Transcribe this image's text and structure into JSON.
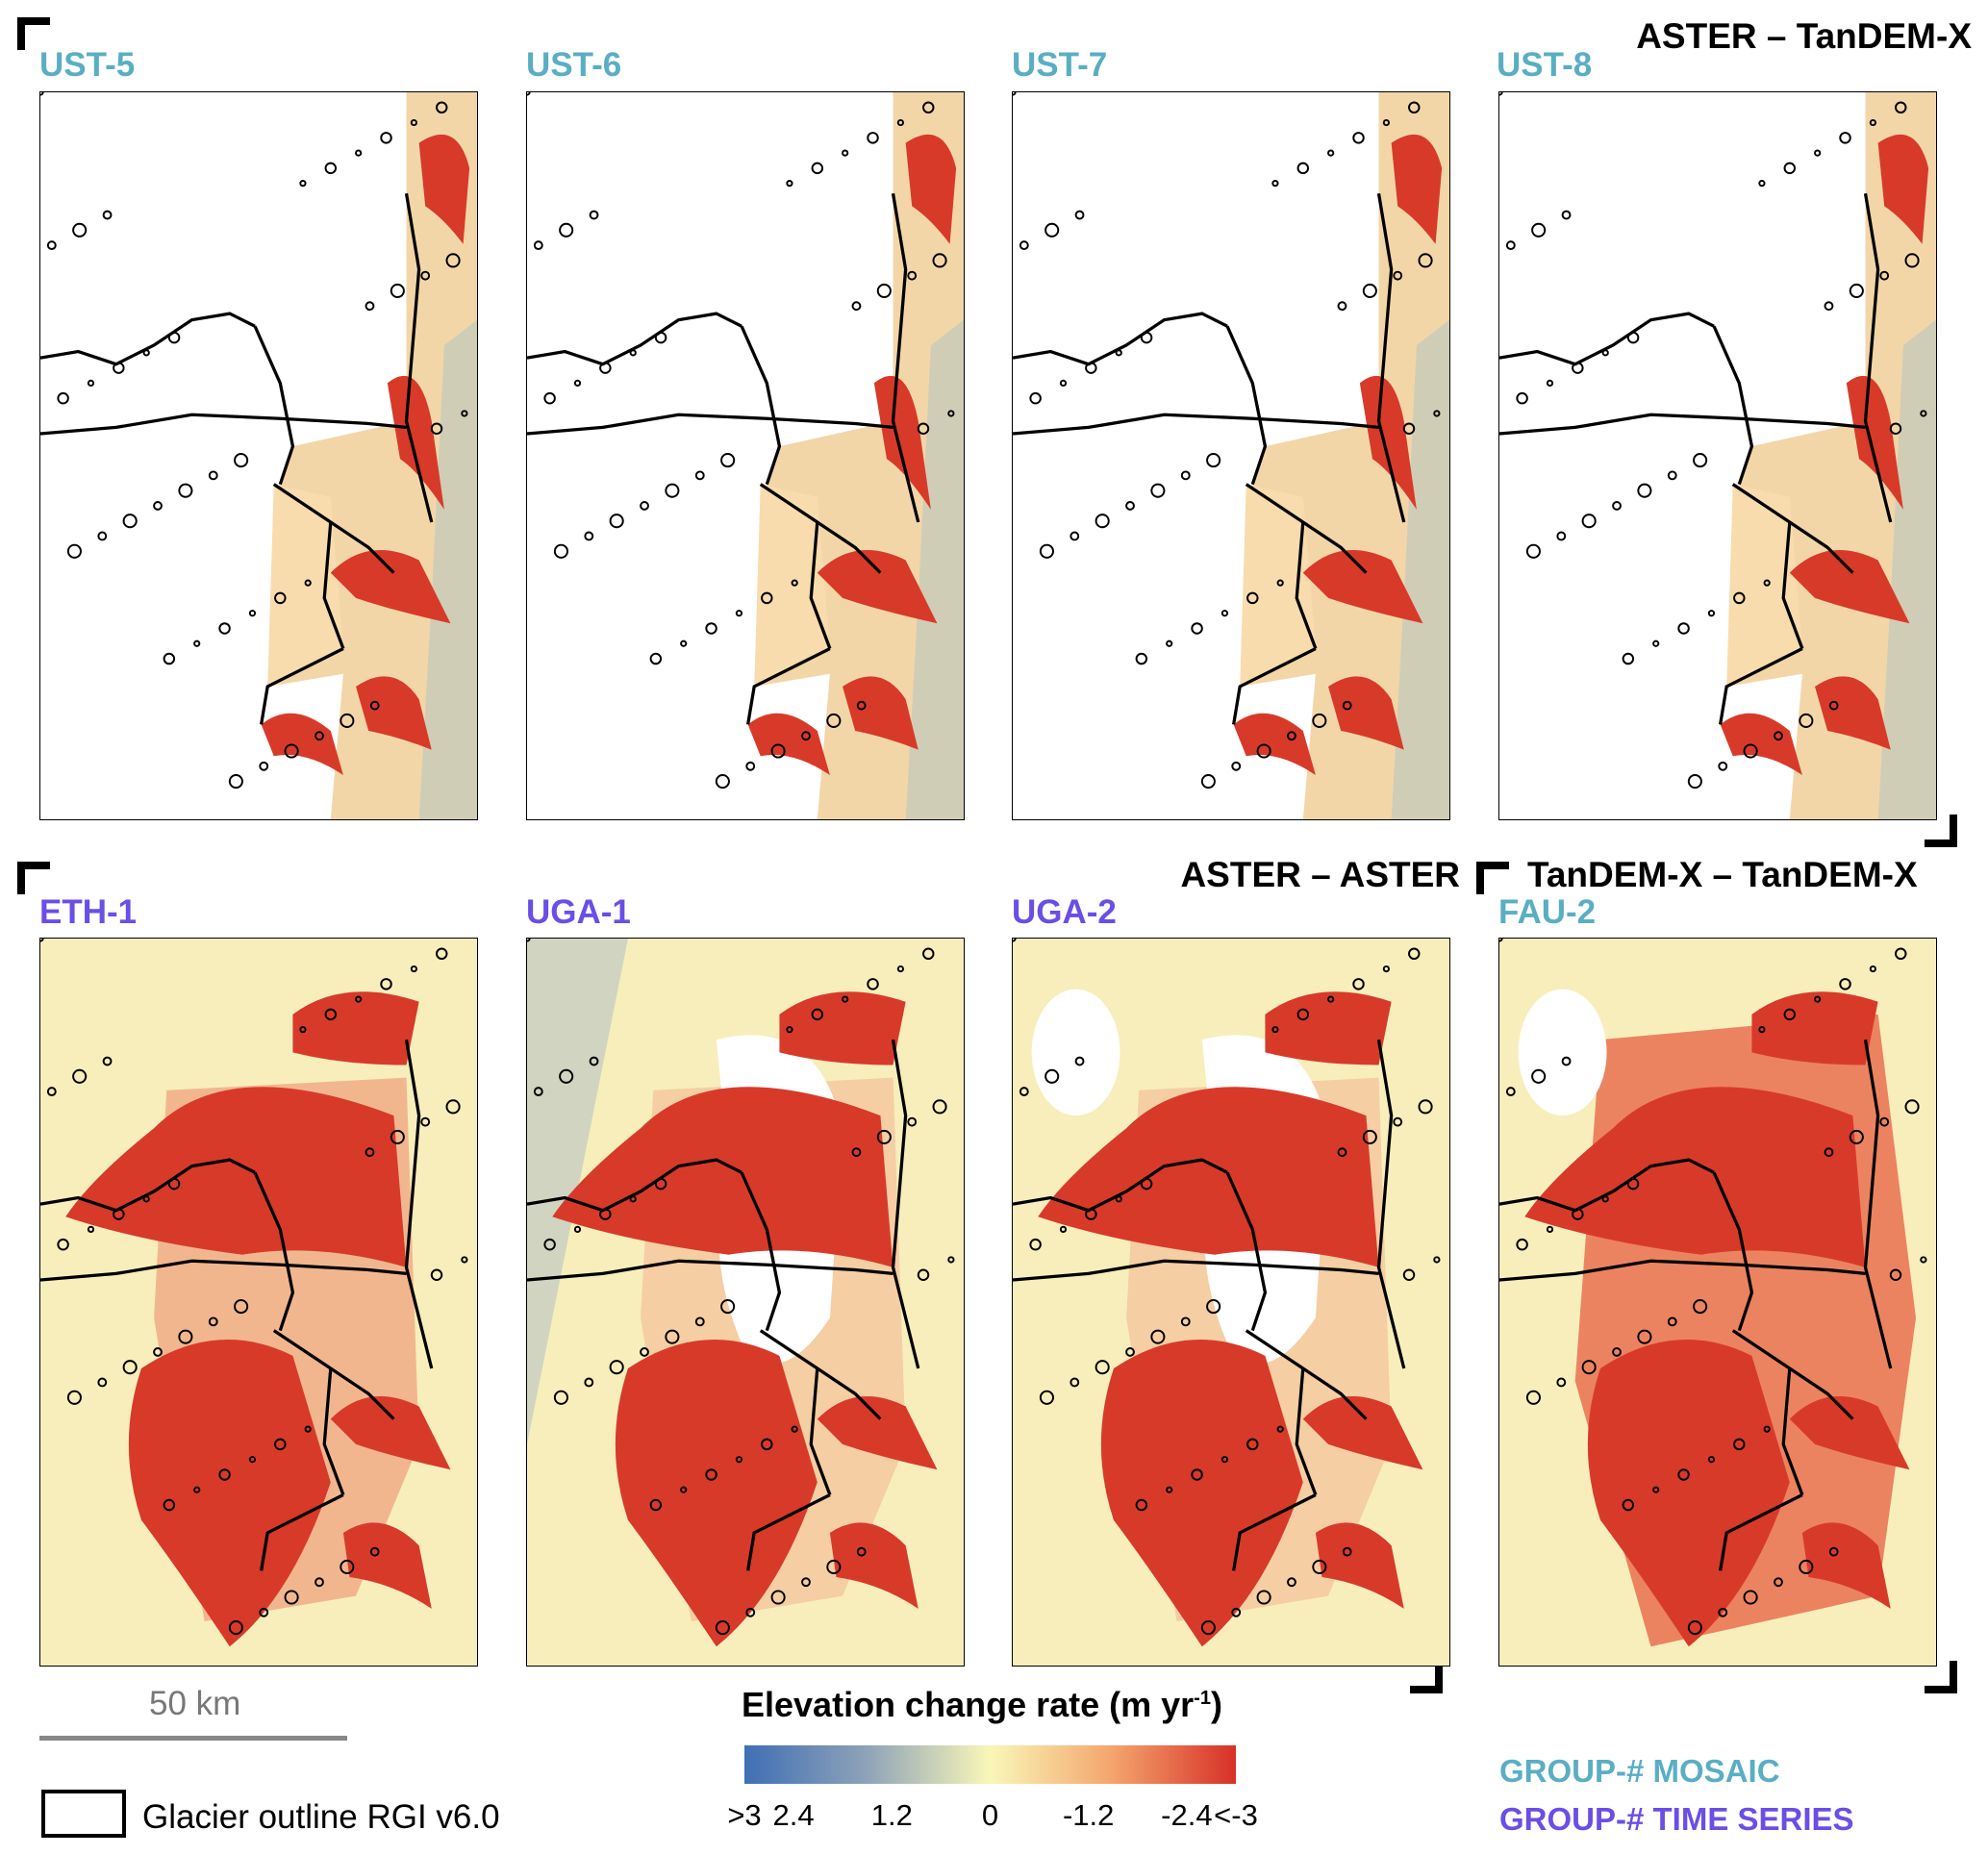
{
  "section_headers": {
    "aster_tandemx": "ASTER – TanDEM-X",
    "aster_aster": "ASTER – ASTER",
    "tandemx_tandemx": "TanDEM-X – TanDEM-X"
  },
  "panels": [
    {
      "label": "UST-5",
      "group": "mosaic"
    },
    {
      "label": "UST-6",
      "group": "mosaic"
    },
    {
      "label": "UST-7",
      "group": "mosaic"
    },
    {
      "label": "UST-8",
      "group": "mosaic"
    },
    {
      "label": "ETH-1",
      "group": "time series"
    },
    {
      "label": "UGA-1",
      "group": "time series"
    },
    {
      "label": "UGA-2",
      "group": "time series"
    },
    {
      "label": "FAU-2",
      "group": "mosaic"
    }
  ],
  "scale_bar": {
    "label": "50 km"
  },
  "outline_legend": {
    "label": "Glacier outline RGI v6.0"
  },
  "colorbar": {
    "title": "Elevation change rate (m yr",
    "title_sup": "-1",
    "title_end": ")",
    "ticks": [
      ">3",
      "2.4",
      "1.2",
      "0",
      "-1.2",
      "-2.4",
      "<-3"
    ],
    "colors": [
      "#3f6fb5",
      "#8fa3b8",
      "#f9f7b8",
      "#f4a46c",
      "#d73027"
    ]
  },
  "group_legend": {
    "mosaic": "GROUP-# MOSAIC",
    "time_series": "GROUP-# TIME SERIES",
    "mosaic_color": "#5aaec4",
    "time_series_color": "#6a4ee6"
  }
}
